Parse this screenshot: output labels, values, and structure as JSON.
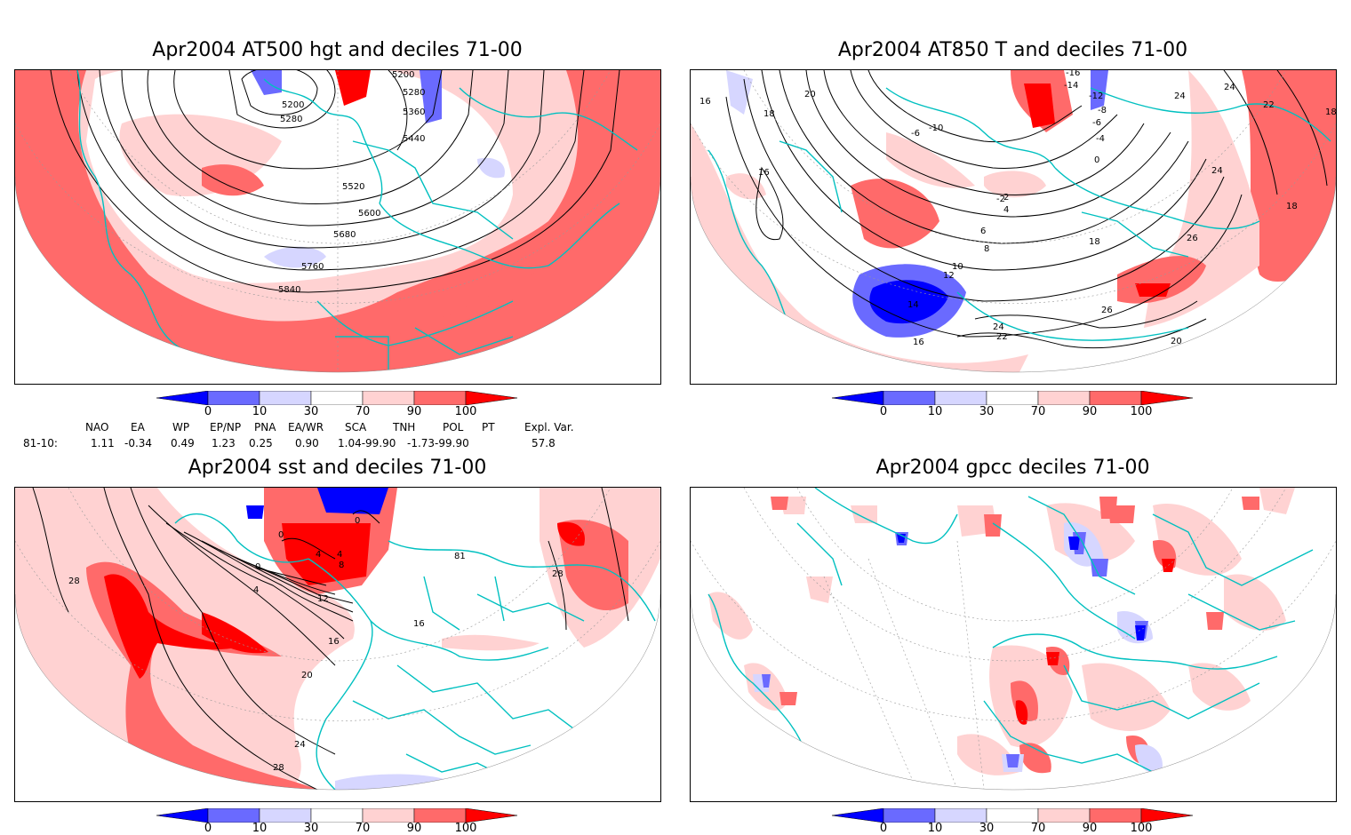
{
  "panels": [
    {
      "title": "Apr2004 AT500 hgt and deciles 71-00",
      "contour_labels": [
        "5200",
        "5200",
        "5280",
        "5280",
        "5360",
        "5440",
        "5520",
        "5600",
        "5680",
        "5760",
        "5840"
      ]
    },
    {
      "title": "Apr2004 AT850 T and deciles 71-00",
      "contour_labels": [
        "-16",
        "-14",
        "-12",
        "-10",
        "-8",
        "-6",
        "-6",
        "-4",
        "-2",
        "0",
        "2",
        "4",
        "6",
        "8",
        "10",
        "12",
        "14",
        "16",
        "16",
        "16",
        "18",
        "18",
        "18",
        "18",
        "20",
        "20",
        "22",
        "22",
        "24",
        "24",
        "24",
        "24",
        "26",
        "26"
      ]
    },
    {
      "title": "Apr2004 sst and deciles 71-00",
      "contour_labels": [
        "0",
        "0",
        "0",
        "4",
        "4",
        "4",
        "8",
        "12",
        "16",
        "16",
        "20",
        "24",
        "28",
        "28",
        "28",
        "81"
      ]
    },
    {
      "title": "Apr2004 gpcc deciles 71-00",
      "contour_labels": []
    }
  ],
  "colorbar": {
    "ticks": [
      "0",
      "10",
      "30",
      "70",
      "90",
      "100"
    ],
    "colors": {
      "deep_blue": "#0000ff",
      "mid_blue": "#6a6aff",
      "light_blue": "#d6d6ff",
      "white": "#ffffff",
      "light_red": "#ffd2d2",
      "mid_red": "#ff6a6a",
      "deep_red": "#ff0000"
    }
  },
  "indices": {
    "headers": [
      "NAO",
      "EA",
      "WP",
      "EP/NP",
      "PNA",
      "EA/WR",
      "SCA",
      "TNH",
      "POL",
      "PT",
      "Expl. Var."
    ],
    "row_label": "81-10:",
    "values": [
      "1.11",
      "-0.34",
      "0.49",
      "1.23",
      "0.25",
      "0.90",
      "1.04-99.90",
      "-1.73-99.90",
      "57.8"
    ]
  },
  "map_colors": {
    "coastline": "#00c0c0",
    "contour": "#000000",
    "gridline": "#999999"
  }
}
